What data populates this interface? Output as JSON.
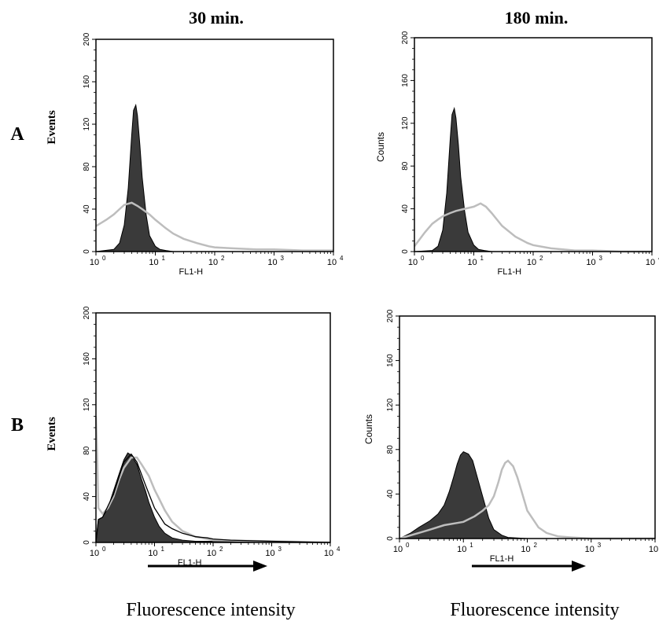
{
  "column_titles": [
    "30 min.",
    "180 min."
  ],
  "row_labels": [
    "A",
    "B"
  ],
  "x_label": "FL1-H",
  "x_ticks": [
    "0",
    "1",
    "2",
    "3",
    "4"
  ],
  "x_tick_base": "10",
  "footer": [
    "Fluorescence intensity",
    "Fluorescence intensity"
  ],
  "colors": {
    "filled": "#3a3a3a",
    "control": "#bdbdbd",
    "outline": "#000000"
  },
  "chart_data": [
    {
      "type": "area",
      "panel": "A 30 min",
      "ylabel": "Events",
      "xscale": "log",
      "xlim": [
        1,
        10000
      ],
      "ylim": [
        0,
        200
      ],
      "yticks": [
        0,
        40,
        80,
        120,
        160,
        200
      ],
      "series": [
        {
          "filled": true,
          "x": [
            1,
            2,
            2.5,
            3,
            3.5,
            4,
            4.3,
            4.7,
            5,
            5.5,
            6,
            7,
            8,
            10,
            12,
            15,
            20,
            50,
            100,
            1000,
            10000
          ],
          "y": [
            0,
            2,
            8,
            25,
            60,
            110,
            133,
            138,
            128,
            100,
            70,
            35,
            15,
            5,
            2,
            1,
            0,
            0,
            0,
            0,
            0
          ]
        },
        {
          "x": [
            1,
            1.5,
            2,
            2.5,
            3,
            4,
            5,
            6,
            8,
            10,
            15,
            20,
            30,
            50,
            80,
            100,
            200,
            500,
            1000,
            3000,
            10000
          ],
          "y": [
            24,
            30,
            35,
            40,
            44,
            46,
            43,
            40,
            35,
            30,
            22,
            17,
            12,
            8,
            5,
            4,
            3,
            2,
            2,
            1,
            1
          ]
        }
      ]
    },
    {
      "type": "area",
      "panel": "A 180 min",
      "ylabel": "Counts",
      "xscale": "log",
      "xlim": [
        1,
        10000
      ],
      "ylim": [
        0,
        200
      ],
      "yticks": [
        0,
        40,
        80,
        120,
        160,
        200
      ],
      "series": [
        {
          "filled": true,
          "x": [
            1,
            2,
            2.5,
            3,
            3.5,
            4,
            4.3,
            4.7,
            5,
            5.5,
            6,
            7,
            8,
            10,
            12,
            15,
            20,
            50,
            100,
            1000,
            10000
          ],
          "y": [
            0,
            1,
            5,
            20,
            55,
            105,
            128,
            134,
            125,
            100,
            70,
            38,
            18,
            6,
            2,
            1,
            0,
            0,
            0,
            0,
            0
          ]
        },
        {
          "x": [
            1,
            1.5,
            2,
            2.5,
            3,
            4,
            5,
            7,
            10,
            13,
            16,
            20,
            30,
            50,
            80,
            100,
            200,
            500,
            1000,
            3000,
            10000
          ],
          "y": [
            5,
            18,
            26,
            30,
            33,
            36,
            38,
            40,
            42,
            45,
            42,
            36,
            24,
            14,
            8,
            6,
            3,
            1,
            1,
            0,
            0
          ]
        }
      ]
    },
    {
      "type": "area",
      "panel": "B 30 min",
      "ylabel": "Events",
      "xscale": "log",
      "xlim": [
        1,
        10000
      ],
      "ylim": [
        0,
        200
      ],
      "yticks": [
        0,
        40,
        80,
        120,
        160,
        200
      ],
      "series": [
        {
          "filled": true,
          "x": [
            1,
            1.1,
            1.3,
            1.6,
            2,
            2.5,
            3,
            3.5,
            4,
            5,
            6,
            7,
            8,
            10,
            12,
            15,
            20,
            30,
            50,
            100,
            1000,
            10000
          ],
          "y": [
            0,
            20,
            22,
            30,
            45,
            60,
            72,
            78,
            76,
            68,
            55,
            45,
            35,
            22,
            14,
            8,
            4,
            2,
            1,
            1,
            0,
            0
          ]
        },
        {
          "x": [
            1,
            1.05,
            1.1,
            1.3,
            1.6,
            2,
            2.5,
            3,
            4,
            5,
            6,
            8,
            10,
            12,
            15,
            20,
            30,
            50,
            100,
            1000,
            10000
          ],
          "y": [
            110,
            75,
            30,
            25,
            30,
            40,
            55,
            65,
            74,
            74,
            68,
            58,
            46,
            38,
            28,
            18,
            10,
            5,
            2,
            1,
            0
          ]
        },
        {
          "x": [
            1,
            1.1,
            1.3,
            2,
            3,
            4,
            5,
            7,
            10,
            15,
            20,
            30,
            50,
            80,
            100,
            200,
            1000,
            10000
          ],
          "y": [
            0,
            20,
            22,
            42,
            70,
            77,
            70,
            50,
            30,
            16,
            12,
            8,
            5,
            4,
            3,
            2,
            1,
            0
          ]
        }
      ]
    },
    {
      "type": "area",
      "panel": "B 180 min",
      "ylabel": "Counts",
      "xscale": "log",
      "xlim": [
        1,
        10000
      ],
      "ylim": [
        0,
        200
      ],
      "yticks": [
        0,
        40,
        80,
        120,
        160,
        200
      ],
      "series": [
        {
          "filled": true,
          "x": [
            1,
            1.5,
            2,
            3,
            4,
            5,
            6,
            7,
            8,
            9,
            10,
            12,
            14,
            16,
            20,
            25,
            30,
            40,
            50,
            100,
            1000,
            10000
          ],
          "y": [
            0,
            5,
            10,
            16,
            22,
            30,
            42,
            55,
            67,
            75,
            78,
            76,
            70,
            58,
            38,
            18,
            8,
            3,
            1,
            0,
            0,
            0
          ]
        },
        {
          "x": [
            1,
            2,
            3,
            5,
            8,
            10,
            15,
            20,
            25,
            30,
            35,
            40,
            45,
            50,
            60,
            70,
            80,
            100,
            150,
            200,
            300,
            500,
            1000,
            10000
          ],
          "y": [
            0,
            5,
            8,
            12,
            14,
            15,
            20,
            25,
            30,
            38,
            50,
            62,
            68,
            70,
            65,
            55,
            44,
            25,
            10,
            5,
            2,
            1,
            0,
            0
          ]
        }
      ]
    }
  ]
}
